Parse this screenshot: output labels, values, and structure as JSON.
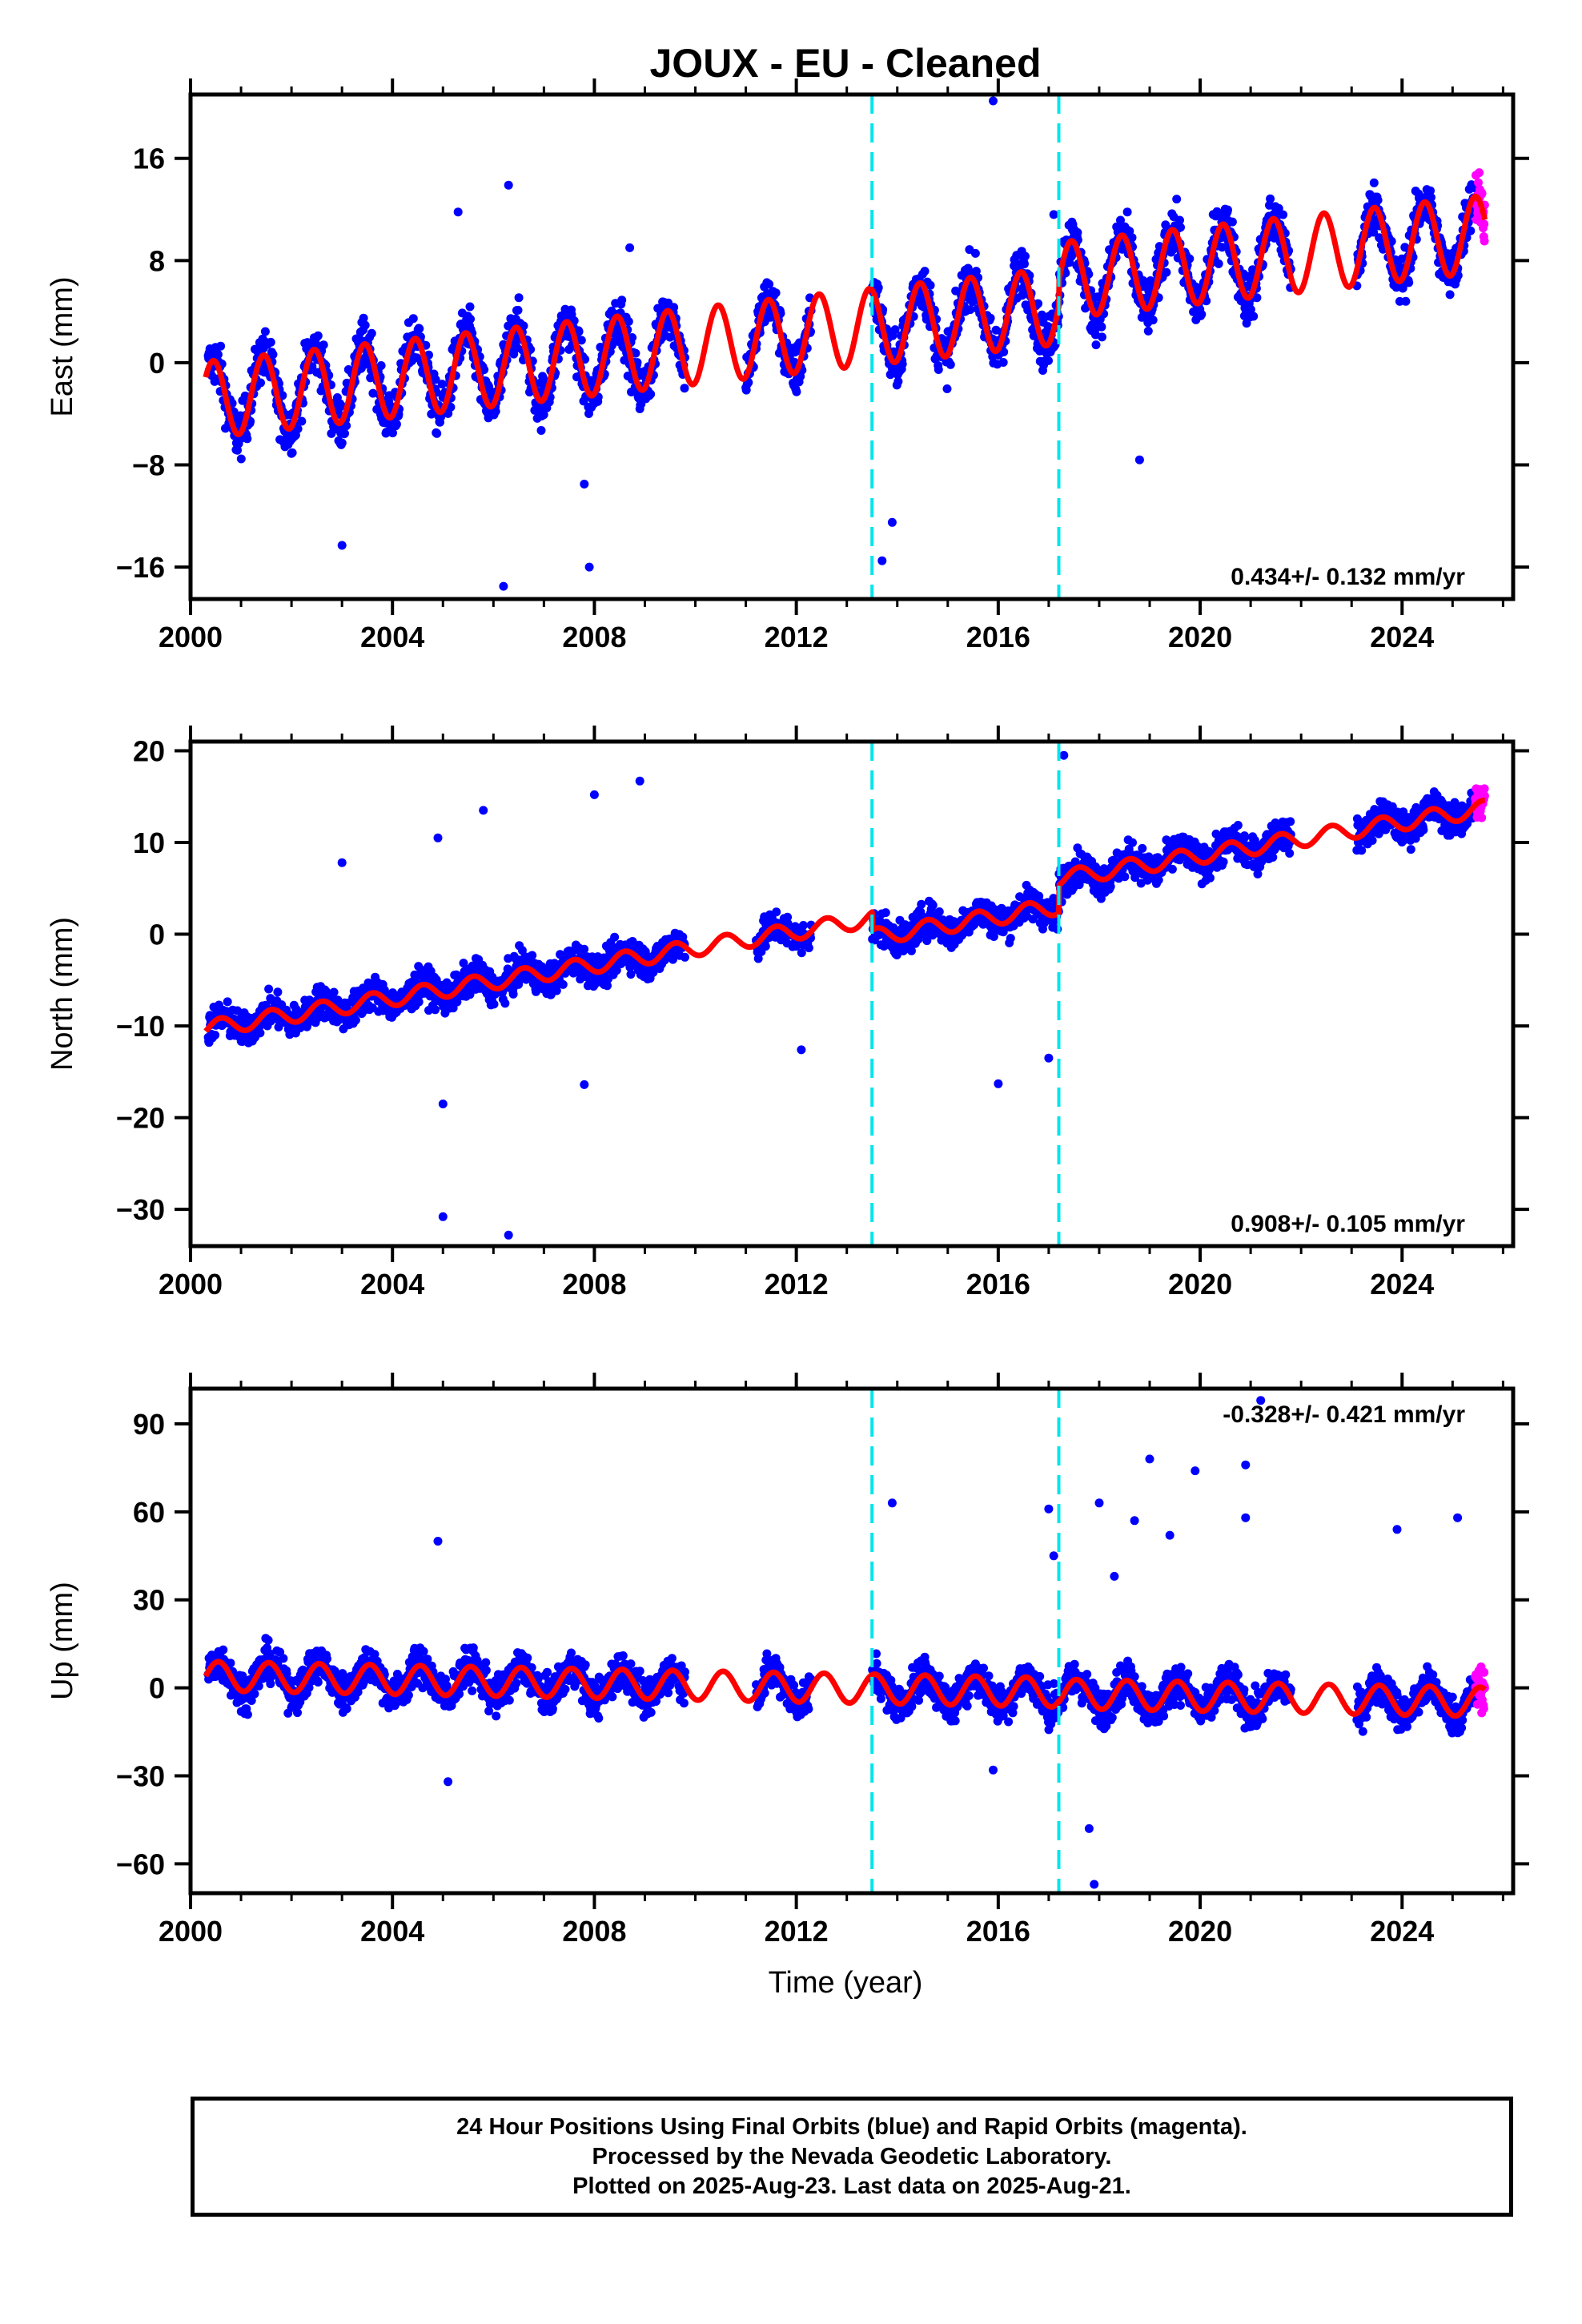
{
  "title": "JOUX  - EU - Cleaned",
  "xlabel": "Time (year)",
  "footer": {
    "line1": "24 Hour Positions Using Final Orbits (blue) and Rapid Orbits (magenta).",
    "line2": "Processed by the Nevada Geodetic Laboratory.",
    "line3": "Plotted on 2025-Aug-23. Last data on 2025-Aug-21."
  },
  "colors": {
    "final_orbits": "#0000ff",
    "rapid_orbits": "#ff00ff",
    "model": "#ff0000",
    "equipment_change": "#00e5ee"
  },
  "chart_data": [
    {
      "type": "scatter",
      "component": "east",
      "ylabel": "East (mm)",
      "rate": "0.434+/- 0.132 mm/yr",
      "xlim": [
        2000.0,
        2026.2
      ],
      "ylim": [
        -18.5,
        21
      ],
      "yticks": [
        -16,
        -8,
        0,
        8,
        16
      ],
      "xticks": [
        2000,
        2004,
        2008,
        2012,
        2016,
        2020,
        2024
      ],
      "equipment_changes": [
        2013.5,
        2017.2
      ],
      "model": {
        "offset": -2.9,
        "trend": 0.434,
        "amplitude": 3.0,
        "phase_peak": 0.45,
        "steps": [
          {
            "t": 2017.2,
            "dy": 2.0
          }
        ]
      },
      "data_gaps": [
        [
          2009.8,
          2011.0
        ],
        [
          2012.3,
          2013.5
        ],
        [
          2021.8,
          2023.1
        ]
      ],
      "rapid_span": [
        2025.45,
        2025.64
      ],
      "outliers": [
        [
          2006.3,
          13.9
        ],
        [
          2005.3,
          11.8
        ],
        [
          2015.9,
          20.5
        ],
        [
          2017.1,
          11.6
        ],
        [
          2008.7,
          9.0
        ],
        [
          2006.2,
          -17.5
        ],
        [
          2007.9,
          -16.0
        ],
        [
          2003.0,
          -14.3
        ],
        [
          2013.7,
          -15.5
        ],
        [
          2013.9,
          -12.5
        ],
        [
          2007.8,
          -9.5
        ],
        [
          2018.8,
          -7.6
        ]
      ]
    },
    {
      "type": "scatter",
      "component": "north",
      "ylabel": "North (mm)",
      "rate": "0.908+/- 0.105 mm/yr",
      "xlim": [
        2000.0,
        2026.2
      ],
      "ylim": [
        -34,
        21
      ],
      "yticks": [
        -30,
        -20,
        -10,
        0,
        10,
        20
      ],
      "xticks": [
        2000,
        2004,
        2008,
        2012,
        2016,
        2020,
        2024
      ],
      "equipment_changes": [
        2013.5,
        2017.2
      ],
      "model": {
        "offset": -10.3,
        "trend": 0.908,
        "amplitude": 0.9,
        "phase_peak": 0.6,
        "steps": [
          {
            "t": 2013.5,
            "dy": -2.0
          },
          {
            "t": 2017.2,
            "dy": 3.0
          }
        ]
      },
      "data_gaps": [
        [
          2009.8,
          2011.2
        ],
        [
          2012.3,
          2013.5
        ],
        [
          2021.8,
          2023.1
        ]
      ],
      "rapid_span": [
        2025.45,
        2025.64
      ],
      "outliers": [
        [
          2005.0,
          -30.8
        ],
        [
          2006.3,
          -32.8
        ],
        [
          2005.8,
          13.5
        ],
        [
          2008.0,
          15.2
        ],
        [
          2008.9,
          16.7
        ],
        [
          2017.3,
          19.5
        ],
        [
          2003.0,
          7.8
        ],
        [
          2004.9,
          10.5
        ],
        [
          2016.0,
          -16.3
        ],
        [
          2007.8,
          -16.4
        ],
        [
          2005.0,
          -18.5
        ],
        [
          2012.1,
          -12.6
        ],
        [
          2017.0,
          -13.5
        ]
      ]
    },
    {
      "type": "scatter",
      "component": "up",
      "ylabel": "Up (mm)",
      "rate": "-0.328+/- 0.421 mm/yr",
      "xlim": [
        2000.0,
        2026.2
      ],
      "ylim": [
        -70,
        102
      ],
      "yticks": [
        -60,
        -30,
        0,
        30,
        60,
        90
      ],
      "xticks": [
        2000,
        2004,
        2008,
        2012,
        2016,
        2020,
        2024
      ],
      "equipment_changes": [
        2013.5,
        2017.2
      ],
      "model": {
        "offset": 4.0,
        "trend": -0.328,
        "amplitude": 5.0,
        "phase_peak": 0.55,
        "steps": [
          {
            "t": 2017.2,
            "dy": -0.5
          }
        ]
      },
      "data_gaps": [
        [
          2009.8,
          2011.2
        ],
        [
          2012.3,
          2013.5
        ],
        [
          2021.8,
          2023.1
        ]
      ],
      "rapid_span": [
        2025.45,
        2025.64
      ],
      "outliers": [
        [
          2013.9,
          63.0
        ],
        [
          2004.9,
          50.0
        ],
        [
          2018.0,
          63.0
        ],
        [
          2018.7,
          57.0
        ],
        [
          2019.0,
          78.0
        ],
        [
          2019.9,
          74.0
        ],
        [
          2020.9,
          76.0
        ],
        [
          2021.2,
          98.0
        ],
        [
          2017.0,
          61.0
        ],
        [
          2023.9,
          54.0
        ],
        [
          2025.1,
          58.0
        ],
        [
          2005.1,
          -32.0
        ],
        [
          2017.9,
          -67.0
        ],
        [
          2017.8,
          -48.0
        ],
        [
          2015.9,
          -28.0
        ],
        [
          2019.4,
          52.0
        ],
        [
          2020.9,
          58.0
        ],
        [
          2018.3,
          38.0
        ],
        [
          2017.1,
          45.0
        ]
      ]
    }
  ]
}
